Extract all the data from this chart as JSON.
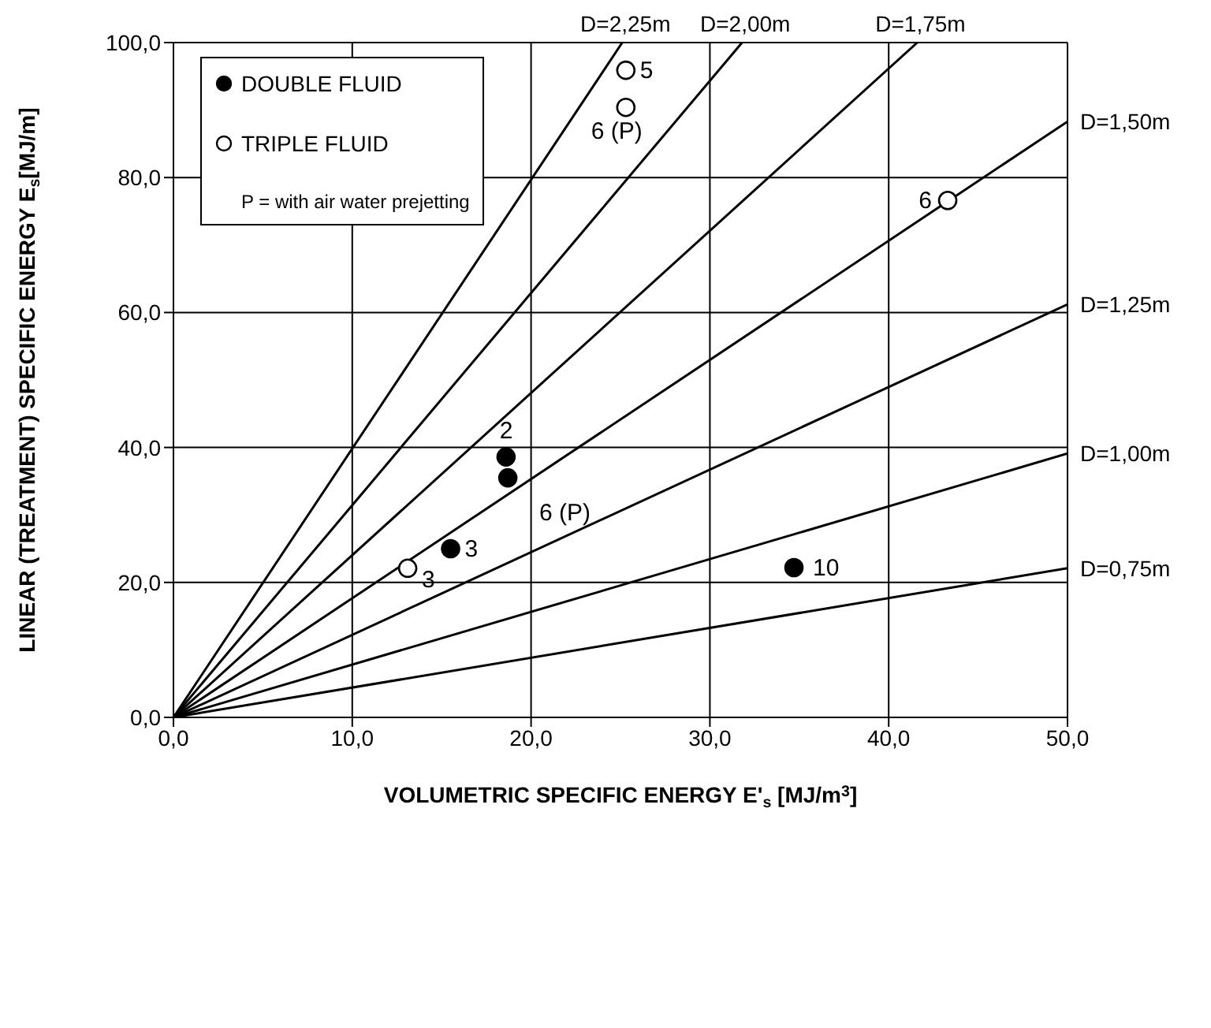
{
  "chart_data": {
    "type": "scatter",
    "xlabel": "VOLUMETRIC SPECIFIC ENERGY E'$_{s}$ [MJ/m$^{3}$]",
    "ylabel": "LINEAR (TREATMENT) SPECIFIC ENERGY E$_{s}$[MJ/m]",
    "xlim": [
      0,
      50
    ],
    "xticks": [
      {
        "value": 0,
        "label": "0,0"
      },
      {
        "value": 10,
        "label": "10,0"
      },
      {
        "value": 20,
        "label": "20,0"
      },
      {
        "value": 30,
        "label": "30,0"
      },
      {
        "value": 40,
        "label": "40,0"
      },
      {
        "value": 50,
        "label": "50,0"
      }
    ],
    "ylim": [
      0,
      100
    ],
    "yticks": [
      {
        "value": 0,
        "label": "0,0"
      },
      {
        "value": 20,
        "label": "20,0"
      },
      {
        "value": 40,
        "label": "40,0"
      },
      {
        "value": 60,
        "label": "60,0"
      },
      {
        "value": 80,
        "label": "80,0"
      },
      {
        "value": 100,
        "label": "100,0"
      }
    ],
    "grid": true,
    "legend": "top left",
    "series": [
      {
        "name": "DOUBLE FLUID",
        "marker": "circle",
        "color": "#000000",
        "x": [
          18.6,
          18.7,
          15.5,
          34.7
        ],
        "values": [
          38.6,
          35.5,
          25.0,
          22.2
        ]
      },
      {
        "name": "TRIPLE FLUID",
        "marker": "circle",
        "color": "#ffffff",
        "x": [
          25.3,
          25.3,
          43.3,
          13.1
        ],
        "values": [
          95.9,
          90.4,
          76.6,
          22.1
        ]
      },
      {
        "name": "D=2,25m",
        "type": "line",
        "marker": "none",
        "color": "#000000",
        "x": [
          0,
          25.1
        ],
        "values": [
          0,
          100
        ]
      },
      {
        "name": "D=2,00m",
        "type": "line",
        "marker": "none",
        "color": "#000000",
        "x": [
          0,
          31.8
        ],
        "values": [
          0,
          100
        ]
      },
      {
        "name": "D=1,75m",
        "type": "line",
        "marker": "none",
        "color": "#000000",
        "x": [
          0,
          41.6
        ],
        "values": [
          0,
          100
        ]
      },
      {
        "name": "D=1,50m",
        "type": "line",
        "marker": "none",
        "color": "#000000",
        "x": [
          0,
          50
        ],
        "values": [
          0,
          88.3
        ]
      },
      {
        "name": "D=1,25m",
        "type": "line",
        "marker": "none",
        "color": "#000000",
        "x": [
          0,
          50
        ],
        "values": [
          0,
          61.2
        ]
      },
      {
        "name": "D=1,00m",
        "type": "line",
        "marker": "none",
        "color": "#000000",
        "x": [
          0,
          50
        ],
        "values": [
          0,
          39.1
        ]
      },
      {
        "name": "D=0,75m",
        "type": "line",
        "marker": "none",
        "color": "#000000",
        "x": [
          0,
          50
        ],
        "values": [
          0,
          22.1
        ]
      }
    ],
    "annotations": [
      "P = with air water prejetting",
      {
        "text": "2",
        "x": 18.6,
        "y": 38.6
      },
      {
        "text": "6 (P)",
        "x": 18.7,
        "y": 35.5
      },
      {
        "text": "3",
        "x": 15.5,
        "y": 25.0
      },
      {
        "text": "10",
        "x": 34.7,
        "y": 22.2
      },
      {
        "text": "5",
        "x": 25.3,
        "y": 95.9
      },
      {
        "text": "6 (P)",
        "x": 25.3,
        "y": 90.4
      },
      {
        "text": "6",
        "x": 43.3,
        "y": 76.6
      },
      {
        "text": "3",
        "x": 13.1,
        "y": 22.1
      }
    ]
  }
}
